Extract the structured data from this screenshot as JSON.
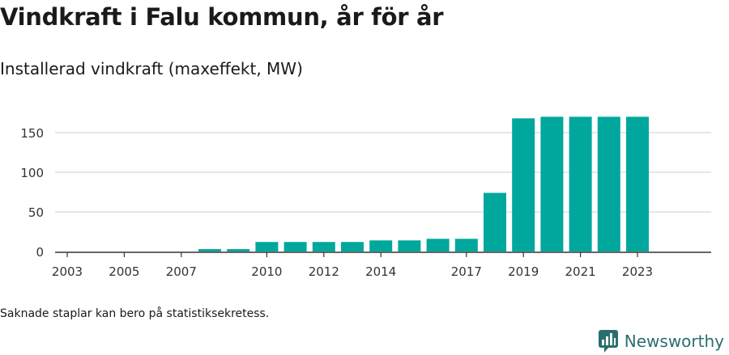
{
  "header": {
    "title": "Vindkraft i Falu kommun, år för år",
    "subtitle": "Installerad vindkraft (maxeffekt, MW)"
  },
  "footer": {
    "note": "Saknade staplar kan bero på statistiksekretess.",
    "brand": "Newsworthy"
  },
  "colors": {
    "bar": "#00a79d",
    "grid": "#dddddd",
    "axis": "#333333",
    "brand": "#2a6f6c"
  },
  "chart_data": {
    "type": "bar",
    "x": [
      2003,
      2004,
      2005,
      2006,
      2007,
      2008,
      2009,
      2010,
      2011,
      2012,
      2013,
      2014,
      2015,
      2016,
      2017,
      2018,
      2019,
      2020,
      2021,
      2022,
      2023
    ],
    "values": [
      0,
      0,
      0,
      0,
      0,
      3,
      3,
      12,
      12,
      12,
      12,
      14,
      14,
      16,
      16,
      74,
      168,
      170,
      170,
      170,
      170
    ],
    "x_tick_labels": [
      "2003",
      "2005",
      "2007",
      "2010",
      "2012",
      "2014",
      "2017",
      "2019",
      "2021",
      "2023"
    ],
    "y_ticks": [
      0,
      50,
      100,
      150
    ],
    "ylim": [
      0,
      180
    ],
    "grid": true,
    "legend": "none"
  }
}
